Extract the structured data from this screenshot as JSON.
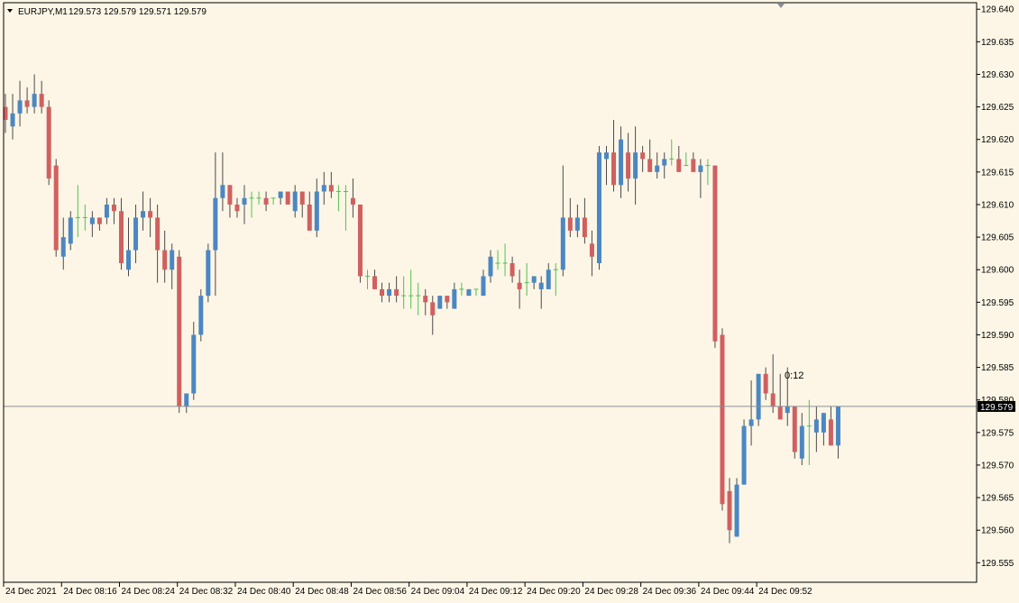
{
  "header": {
    "symbol": "EURJPY,M1",
    "ohlc": "129.573 129.579 129.571 129.579"
  },
  "countdown": "0:12",
  "colors": {
    "background": "#fdf6e6",
    "bull": "#4b87c2",
    "bear": "#d06060",
    "doji": "#4ec24e",
    "wick": "#4a4a4a",
    "grid": "#000000",
    "price_line": "#8a8f99",
    "price_label_bg": "#000000"
  },
  "chart_data": {
    "type": "candlestick",
    "symbol": "EURJPY",
    "timeframe": "M1",
    "ylim": [
      129.552,
      129.641
    ],
    "y_ticks": [
      "129.640",
      "129.635",
      "129.630",
      "129.625",
      "129.620",
      "129.615",
      "129.610",
      "129.605",
      "129.600",
      "129.595",
      "129.590",
      "129.585",
      "129.580",
      "129.575",
      "129.570",
      "129.565",
      "129.560",
      "129.555"
    ],
    "x_ticks": [
      "24 Dec 2021",
      "24 Dec 08:16",
      "24 Dec 08:24",
      "24 Dec 08:32",
      "24 Dec 08:40",
      "24 Dec 08:48",
      "24 Dec 08:56",
      "24 Dec 09:04",
      "24 Dec 09:12",
      "24 Dec 09:20",
      "24 Dec 09:28",
      "24 Dec 09:36",
      "24 Dec 09:44",
      "24 Dec 09:52"
    ],
    "x_tick_every": 8,
    "current_price": "129.579",
    "candles": [
      {
        "o": 129.625,
        "h": 129.627,
        "l": 129.621,
        "c": 129.623
      },
      {
        "o": 129.622,
        "h": 129.627,
        "l": 129.62,
        "c": 129.624
      },
      {
        "o": 129.624,
        "h": 129.629,
        "l": 129.622,
        "c": 129.626
      },
      {
        "o": 129.626,
        "h": 129.628,
        "l": 129.624,
        "c": 129.625
      },
      {
        "o": 129.625,
        "h": 129.63,
        "l": 129.624,
        "c": 129.627
      },
      {
        "o": 129.627,
        "h": 129.629,
        "l": 129.624,
        "c": 129.625
      },
      {
        "o": 129.625,
        "h": 129.626,
        "l": 129.613,
        "c": 129.614
      },
      {
        "o": 129.616,
        "h": 129.617,
        "l": 129.602,
        "c": 129.603
      },
      {
        "o": 129.602,
        "h": 129.608,
        "l": 129.6,
        "c": 129.605
      },
      {
        "o": 129.604,
        "h": 129.609,
        "l": 129.603,
        "c": 129.608
      },
      {
        "o": 129.608,
        "h": 129.613,
        "l": 129.605,
        "c": 129.608
      },
      {
        "o": 129.608,
        "h": 129.61,
        "l": 129.606,
        "c": 129.608
      },
      {
        "o": 129.607,
        "h": 129.609,
        "l": 129.605,
        "c": 129.608
      },
      {
        "o": 129.608,
        "h": 129.608,
        "l": 129.606,
        "c": 129.607
      },
      {
        "o": 129.608,
        "h": 129.611,
        "l": 129.607,
        "c": 129.61
      },
      {
        "o": 129.61,
        "h": 129.611,
        "l": 129.607,
        "c": 129.609
      },
      {
        "o": 129.609,
        "h": 129.611,
        "l": 129.6,
        "c": 129.601
      },
      {
        "o": 129.6,
        "h": 129.608,
        "l": 129.599,
        "c": 129.603
      },
      {
        "o": 129.603,
        "h": 129.61,
        "l": 129.601,
        "c": 129.608
      },
      {
        "o": 129.608,
        "h": 129.612,
        "l": 129.606,
        "c": 129.609
      },
      {
        "o": 129.609,
        "h": 129.611,
        "l": 129.605,
        "c": 129.608
      },
      {
        "o": 129.608,
        "h": 129.61,
        "l": 129.598,
        "c": 129.603
      },
      {
        "o": 129.603,
        "h": 129.606,
        "l": 129.598,
        "c": 129.6
      },
      {
        "o": 129.6,
        "h": 129.604,
        "l": 129.597,
        "c": 129.603
      },
      {
        "o": 129.602,
        "h": 129.603,
        "l": 129.578,
        "c": 129.579
      },
      {
        "o": 129.579,
        "h": 129.581,
        "l": 129.578,
        "c": 129.581
      },
      {
        "o": 129.581,
        "h": 129.592,
        "l": 129.58,
        "c": 129.59
      },
      {
        "o": 129.59,
        "h": 129.597,
        "l": 129.589,
        "c": 129.596
      },
      {
        "o": 129.596,
        "h": 129.604,
        "l": 129.595,
        "c": 129.603
      },
      {
        "o": 129.603,
        "h": 129.618,
        "l": 129.596,
        "c": 129.611
      },
      {
        "o": 129.611,
        "h": 129.618,
        "l": 129.609,
        "c": 129.613
      },
      {
        "o": 129.613,
        "h": 129.613,
        "l": 129.608,
        "c": 129.61
      },
      {
        "o": 129.61,
        "h": 129.611,
        "l": 129.608,
        "c": 129.609
      },
      {
        "o": 129.61,
        "h": 129.613,
        "l": 129.607,
        "c": 129.611
      },
      {
        "o": 129.611,
        "h": 129.612,
        "l": 129.608,
        "c": 129.611
      },
      {
        "o": 129.611,
        "h": 129.612,
        "l": 129.61,
        "c": 129.611
      },
      {
        "o": 129.611,
        "h": 129.612,
        "l": 129.609,
        "c": 129.61
      },
      {
        "o": 129.611,
        "h": 129.611,
        "l": 129.61,
        "c": 129.611
      },
      {
        "o": 129.611,
        "h": 129.612,
        "l": 129.61,
        "c": 129.612
      },
      {
        "o": 129.612,
        "h": 129.612,
        "l": 129.61,
        "c": 129.61
      },
      {
        "o": 129.609,
        "h": 129.613,
        "l": 129.608,
        "c": 129.612
      },
      {
        "o": 129.612,
        "h": 129.612,
        "l": 129.608,
        "c": 129.61
      },
      {
        "o": 129.61,
        "h": 129.612,
        "l": 129.606,
        "c": 129.606
      },
      {
        "o": 129.606,
        "h": 129.614,
        "l": 129.605,
        "c": 129.612
      },
      {
        "o": 129.612,
        "h": 129.615,
        "l": 129.61,
        "c": 129.613
      },
      {
        "o": 129.613,
        "h": 129.615,
        "l": 129.611,
        "c": 129.612
      },
      {
        "o": 129.612,
        "h": 129.613,
        "l": 129.609,
        "c": 129.612
      },
      {
        "o": 129.612,
        "h": 129.613,
        "l": 129.606,
        "c": 129.612
      },
      {
        "o": 129.611,
        "h": 129.614,
        "l": 129.608,
        "c": 129.61
      },
      {
        "o": 129.61,
        "h": 129.61,
        "l": 129.598,
        "c": 129.599
      },
      {
        "o": 129.599,
        "h": 129.6,
        "l": 129.597,
        "c": 129.599
      },
      {
        "o": 129.599,
        "h": 129.6,
        "l": 129.597,
        "c": 129.597
      },
      {
        "o": 129.597,
        "h": 129.598,
        "l": 129.595,
        "c": 129.596
      },
      {
        "o": 129.596,
        "h": 129.598,
        "l": 129.595,
        "c": 129.597
      },
      {
        "o": 129.597,
        "h": 129.599,
        "l": 129.595,
        "c": 129.596
      },
      {
        "o": 129.596,
        "h": 129.599,
        "l": 129.594,
        "c": 129.596
      },
      {
        "o": 129.596,
        "h": 129.6,
        "l": 129.594,
        "c": 129.596
      },
      {
        "o": 129.596,
        "h": 129.598,
        "l": 129.593,
        "c": 129.596
      },
      {
        "o": 129.596,
        "h": 129.597,
        "l": 129.593,
        "c": 129.595
      },
      {
        "o": 129.595,
        "h": 129.596,
        "l": 129.59,
        "c": 129.593
      },
      {
        "o": 129.594,
        "h": 129.596,
        "l": 129.594,
        "c": 129.596
      },
      {
        "o": 129.596,
        "h": 129.596,
        "l": 129.594,
        "c": 129.595
      },
      {
        "o": 129.594,
        "h": 129.598,
        "l": 129.594,
        "c": 129.597
      },
      {
        "o": 129.597,
        "h": 129.598,
        "l": 129.596,
        "c": 129.597
      },
      {
        "o": 129.596,
        "h": 129.597,
        "l": 129.596,
        "c": 129.597
      },
      {
        "o": 129.597,
        "h": 129.597,
        "l": 129.596,
        "c": 129.597
      },
      {
        "o": 129.596,
        "h": 129.6,
        "l": 129.596,
        "c": 129.599
      },
      {
        "o": 129.599,
        "h": 129.603,
        "l": 129.598,
        "c": 129.602
      },
      {
        "o": 129.601,
        "h": 129.603,
        "l": 129.6,
        "c": 129.601
      },
      {
        "o": 129.601,
        "h": 129.604,
        "l": 129.599,
        "c": 129.601
      },
      {
        "o": 129.601,
        "h": 129.602,
        "l": 129.598,
        "c": 129.599
      },
      {
        "o": 129.598,
        "h": 129.6,
        "l": 129.594,
        "c": 129.597
      },
      {
        "o": 129.598,
        "h": 129.601,
        "l": 129.596,
        "c": 129.598
      },
      {
        "o": 129.598,
        "h": 129.599,
        "l": 129.597,
        "c": 129.599
      },
      {
        "o": 129.597,
        "h": 129.599,
        "l": 129.594,
        "c": 129.598
      },
      {
        "o": 129.597,
        "h": 129.601,
        "l": 129.597,
        "c": 129.6
      },
      {
        "o": 129.6,
        "h": 129.601,
        "l": 129.596,
        "c": 129.6
      },
      {
        "o": 129.6,
        "h": 129.616,
        "l": 129.599,
        "c": 129.608
      },
      {
        "o": 129.608,
        "h": 129.611,
        "l": 129.605,
        "c": 129.606
      },
      {
        "o": 129.606,
        "h": 129.61,
        "l": 129.605,
        "c": 129.608
      },
      {
        "o": 129.608,
        "h": 129.611,
        "l": 129.604,
        "c": 129.605
      },
      {
        "o": 129.604,
        "h": 129.606,
        "l": 129.599,
        "c": 129.602
      },
      {
        "o": 129.601,
        "h": 129.619,
        "l": 129.6,
        "c": 129.618
      },
      {
        "o": 129.617,
        "h": 129.619,
        "l": 129.613,
        "c": 129.618
      },
      {
        "o": 129.618,
        "h": 129.623,
        "l": 129.612,
        "c": 129.613
      },
      {
        "o": 129.613,
        "h": 129.622,
        "l": 129.611,
        "c": 129.62
      },
      {
        "o": 129.618,
        "h": 129.621,
        "l": 129.612,
        "c": 129.614
      },
      {
        "o": 129.614,
        "h": 129.622,
        "l": 129.61,
        "c": 129.618
      },
      {
        "o": 129.618,
        "h": 129.619,
        "l": 129.615,
        "c": 129.617
      },
      {
        "o": 129.617,
        "h": 129.62,
        "l": 129.615,
        "c": 129.615
      },
      {
        "o": 129.615,
        "h": 129.618,
        "l": 129.614,
        "c": 129.616
      },
      {
        "o": 129.616,
        "h": 129.618,
        "l": 129.614,
        "c": 129.617
      },
      {
        "o": 129.617,
        "h": 129.62,
        "l": 129.616,
        "c": 129.617
      },
      {
        "o": 129.617,
        "h": 129.619,
        "l": 129.615,
        "c": 129.615
      },
      {
        "o": 129.616,
        "h": 129.618,
        "l": 129.616,
        "c": 129.616
      },
      {
        "o": 129.617,
        "h": 129.618,
        "l": 129.615,
        "c": 129.615
      },
      {
        "o": 129.615,
        "h": 129.617,
        "l": 129.611,
        "c": 129.616
      },
      {
        "o": 129.616,
        "h": 129.617,
        "l": 129.613,
        "c": 129.616
      },
      {
        "o": 129.616,
        "h": 129.616,
        "l": 129.588,
        "c": 129.589
      },
      {
        "o": 129.59,
        "h": 129.591,
        "l": 129.563,
        "c": 129.564
      },
      {
        "o": 129.566,
        "h": 129.568,
        "l": 129.558,
        "c": 129.56
      },
      {
        "o": 129.559,
        "h": 129.568,
        "l": 129.559,
        "c": 129.567
      },
      {
        "o": 129.567,
        "h": 129.577,
        "l": 129.567,
        "c": 129.576
      },
      {
        "o": 129.576,
        "h": 129.583,
        "l": 129.573,
        "c": 129.577
      },
      {
        "o": 129.577,
        "h": 129.584,
        "l": 129.576,
        "c": 129.584
      },
      {
        "o": 129.584,
        "h": 129.585,
        "l": 129.58,
        "c": 129.581
      },
      {
        "o": 129.581,
        "h": 129.587,
        "l": 129.578,
        "c": 129.579
      },
      {
        "o": 129.579,
        "h": 129.584,
        "l": 129.577,
        "c": 129.577
      },
      {
        "o": 129.578,
        "h": 129.585,
        "l": 129.576,
        "c": 129.579
      },
      {
        "o": 129.579,
        "h": 129.579,
        "l": 129.571,
        "c": 129.572
      },
      {
        "o": 129.571,
        "h": 129.578,
        "l": 129.57,
        "c": 129.576
      },
      {
        "o": 129.576,
        "h": 129.58,
        "l": 129.57,
        "c": 129.576
      },
      {
        "o": 129.575,
        "h": 129.579,
        "l": 129.572,
        "c": 129.577
      },
      {
        "o": 129.575,
        "h": 129.578,
        "l": 129.573,
        "c": 129.578
      },
      {
        "o": 129.577,
        "h": 129.579,
        "l": 129.573,
        "c": 129.573
      },
      {
        "o": 129.573,
        "h": 129.579,
        "l": 129.571,
        "c": 129.579
      }
    ]
  }
}
